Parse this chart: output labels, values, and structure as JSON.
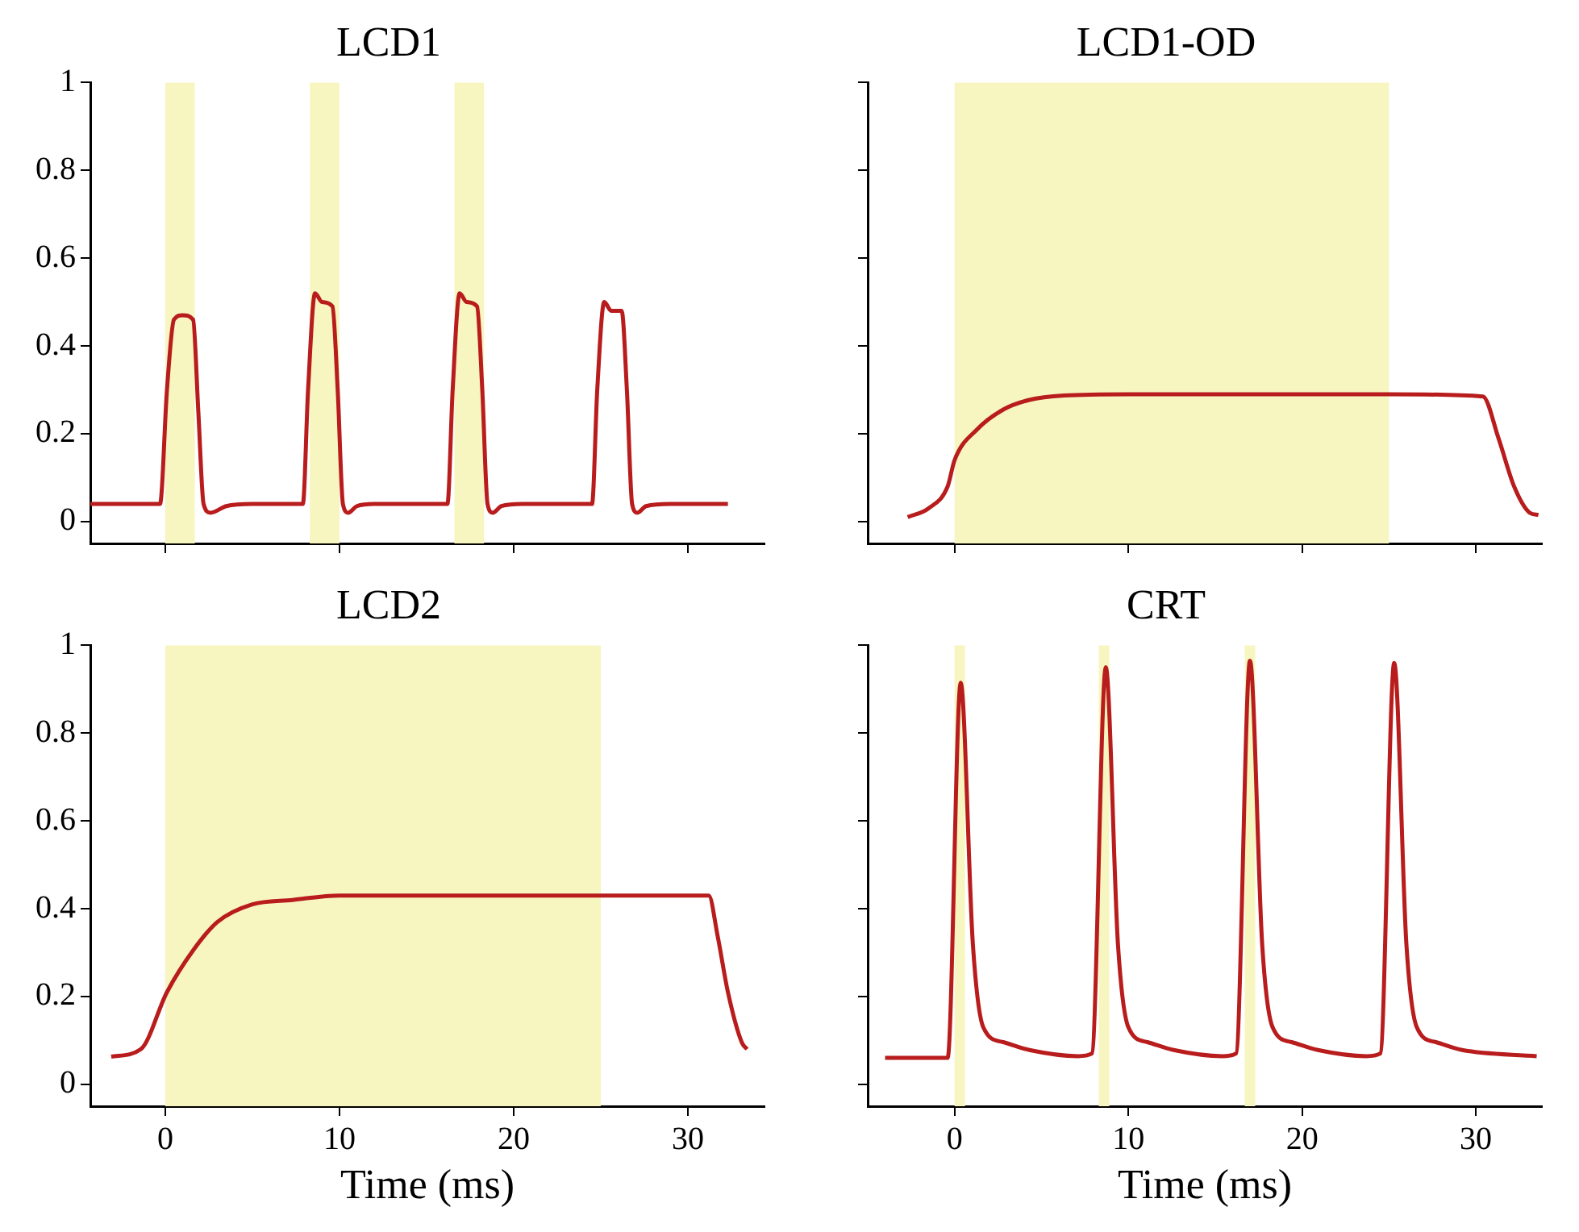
{
  "chart_data": [
    {
      "type": "line",
      "title": "LCD1",
      "xlim": [
        -4.3,
        34.4
      ],
      "ylim": [
        -0.05,
        1
      ],
      "xticks": [
        0,
        10,
        20,
        30
      ],
      "yticks": [
        0,
        0.2,
        0.4,
        0.6,
        0.8,
        1
      ],
      "tick_labels": "y",
      "grid": false,
      "legend": false,
      "marker": "none",
      "bands": [
        {
          "axis": "x",
          "from": 0,
          "to": 1.7,
          "color": "#f7f5c0"
        },
        {
          "axis": "x",
          "from": 8.3,
          "to": 10,
          "color": "#f7f5c0"
        },
        {
          "axis": "x",
          "from": 16.6,
          "to": 18.3,
          "color": "#f7f5c0"
        }
      ],
      "series": [
        {
          "color": "#b81c1c",
          "x": [
            -4.3,
            -0.3,
            0.1,
            0.5,
            1.0,
            1.6,
            1.9,
            2.2,
            2.6,
            3.5,
            5,
            7.9,
            8.2,
            8.6,
            9.0,
            9.6,
            9.9,
            10.2,
            10.5,
            11,
            12,
            14,
            16.2,
            16.5,
            16.9,
            17.3,
            17.9,
            18.2,
            18.5,
            18.8,
            19.3,
            20.5,
            22,
            24.5,
            24.8,
            25.2,
            25.6,
            26.2,
            26.5,
            26.8,
            27.1,
            27.6,
            29,
            32.3
          ],
          "values": [
            0.04,
            0.04,
            0.3,
            0.46,
            0.47,
            0.46,
            0.25,
            0.04,
            0.02,
            0.035,
            0.04,
            0.04,
            0.3,
            0.52,
            0.5,
            0.49,
            0.3,
            0.04,
            0.02,
            0.035,
            0.04,
            0.04,
            0.04,
            0.3,
            0.52,
            0.5,
            0.49,
            0.3,
            0.04,
            0.02,
            0.035,
            0.04,
            0.04,
            0.04,
            0.3,
            0.5,
            0.48,
            0.48,
            0.3,
            0.04,
            0.02,
            0.035,
            0.04,
            0.04
          ]
        }
      ]
    },
    {
      "type": "line",
      "title": "LCD1-OD",
      "xlim": [
        -5,
        33.8
      ],
      "ylim": [
        -0.05,
        1
      ],
      "xticks": [
        0,
        10,
        20,
        30
      ],
      "yticks": [
        0,
        0.2,
        0.4,
        0.6,
        0.8,
        1
      ],
      "tick_labels": false,
      "grid": false,
      "legend": false,
      "marker": "none",
      "bands": [
        {
          "axis": "x",
          "from": 0,
          "to": 25,
          "color": "#f7f5c0"
        }
      ],
      "series": [
        {
          "color": "#b81c1c",
          "x": [
            -2.7,
            -1.5,
            -0.4,
            0,
            1.3,
            2.8,
            4.3,
            6.3,
            10,
            15,
            20,
            25,
            30.4,
            31.3,
            32.2,
            33.1,
            33.6
          ],
          "values": [
            0.01,
            0.03,
            0.08,
            0.14,
            0.21,
            0.255,
            0.277,
            0.287,
            0.29,
            0.29,
            0.29,
            0.29,
            0.285,
            0.19,
            0.08,
            0.02,
            0.015
          ]
        }
      ]
    },
    {
      "type": "line",
      "title": "LCD2",
      "xlabel": "Time (ms)",
      "xlim": [
        -4.3,
        34.4
      ],
      "ylim": [
        -0.05,
        1
      ],
      "xticks": [
        0,
        10,
        20,
        30
      ],
      "yticks": [
        0,
        0.2,
        0.4,
        0.6,
        0.8,
        1
      ],
      "grid": false,
      "legend": false,
      "marker": "none",
      "bands": [
        {
          "axis": "x",
          "from": 0,
          "to": 25,
          "color": "#f7f5c0"
        }
      ],
      "series": [
        {
          "color": "#b81c1c",
          "x": [
            -3.1,
            -1.4,
            0.1,
            1.6,
            3.0,
            5,
            7.3,
            10,
            15,
            20,
            25,
            31.2,
            31.7,
            32.3,
            33.1,
            33.4
          ],
          "values": [
            0.063,
            0.08,
            0.21,
            0.305,
            0.37,
            0.41,
            0.42,
            0.43,
            0.43,
            0.43,
            0.43,
            0.43,
            0.34,
            0.21,
            0.095,
            0.08
          ]
        }
      ]
    },
    {
      "type": "line",
      "title": "CRT",
      "xlabel": "Time (ms)",
      "xlim": [
        -5,
        33.8
      ],
      "ylim": [
        -0.05,
        1
      ],
      "xticks": [
        0,
        10,
        20,
        30
      ],
      "yticks": [
        0,
        0.2,
        0.4,
        0.6,
        0.8,
        1
      ],
      "tick_labels": "x",
      "grid": false,
      "legend": false,
      "marker": "none",
      "bands": [
        {
          "axis": "x",
          "from": 0,
          "to": 0.6,
          "color": "#f7f5c0"
        },
        {
          "axis": "x",
          "from": 8.3,
          "to": 8.9,
          "color": "#f7f5c0"
        },
        {
          "axis": "x",
          "from": 16.7,
          "to": 17.3,
          "color": "#f7f5c0"
        }
      ],
      "series": [
        {
          "color": "#b81c1c",
          "x": [
            -4,
            -0.4,
            0.35,
            1.05,
            1.65,
            2.8,
            4.3,
            7.1,
            7.9,
            8.7,
            9.4,
            10.0,
            11.1,
            12.6,
            15.4,
            16.2,
            17.0,
            17.7,
            18.3,
            19.4,
            20.9,
            23.7,
            24.5,
            25.3,
            26.0,
            26.6,
            27.7,
            29.2,
            33.5
          ],
          "values": [
            0.06,
            0.06,
            0.915,
            0.32,
            0.13,
            0.096,
            0.078,
            0.064,
            0.07,
            0.95,
            0.32,
            0.13,
            0.096,
            0.078,
            0.064,
            0.07,
            0.965,
            0.32,
            0.13,
            0.096,
            0.078,
            0.064,
            0.07,
            0.96,
            0.32,
            0.13,
            0.096,
            0.078,
            0.064
          ]
        }
      ]
    }
  ]
}
